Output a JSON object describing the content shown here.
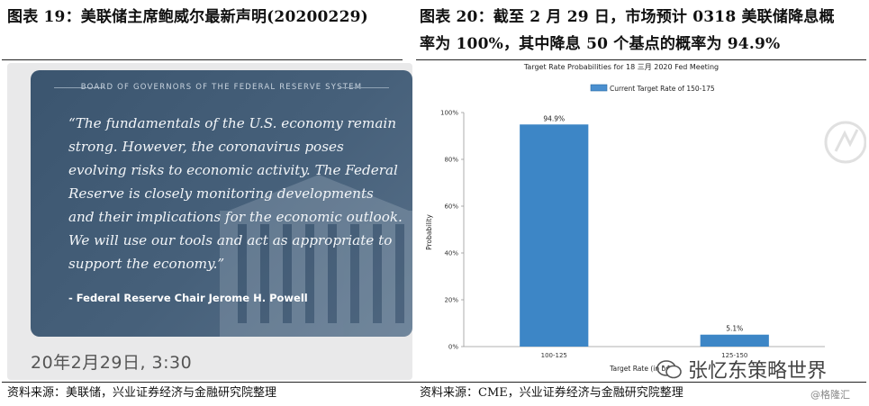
{
  "left": {
    "title": "图表  19：美联储主席鲍威尔最新声明(20200229)",
    "board_header": "BOARD OF GOVERNORS OF THE FEDERAL RESERVE SYSTEM",
    "quote": "“The fundamentals of the U.S. economy remain strong. However, the coronavirus poses evolving risks to economic activity. The Federal Reserve is closely monitoring developments and their implications for the economic outlook. We will use our tools and act as appropriate to support the economy.”",
    "attribution": "- Federal Reserve Chair Jerome H. Powell",
    "timestamp": "20年2月29日, 3:30",
    "source": "资料来源：美联储，兴业证券经济与金融研究院整理"
  },
  "right": {
    "title_line1": "图表  20：截至 2 月 29 日，市场预计 0318 美联储降息概",
    "title_line2": "率为 100%，其中降息 50 个基点的概率为 94.9%",
    "source": "资料来源：CME，兴业证券经济与金融研究院整理"
  },
  "watermark": {
    "wechat_text": "张忆东策略世界",
    "small": "@格隆汇"
  },
  "chart_data": {
    "type": "bar",
    "title": "Target Rate Probabilities for 18 三月 2020 Fed Meeting",
    "legend": "Current Target Rate of 150-175",
    "legend_position": "top",
    "xlabel": "Target Rate (in bps)",
    "ylabel": "Probability",
    "categories": [
      "100-125",
      "125-150"
    ],
    "values": [
      94.9,
      5.1
    ],
    "value_labels": [
      "94.9%",
      "5.1%"
    ],
    "ylim": [
      0,
      100
    ],
    "yticks": [
      "0%",
      "20%",
      "40%",
      "60%",
      "80%",
      "100%"
    ],
    "ytick_values": [
      0,
      20,
      40,
      60,
      80,
      100
    ],
    "grid": false,
    "colors": {
      "bar": "#3d86c6",
      "legend_swatch": "#4a8fcf"
    }
  }
}
